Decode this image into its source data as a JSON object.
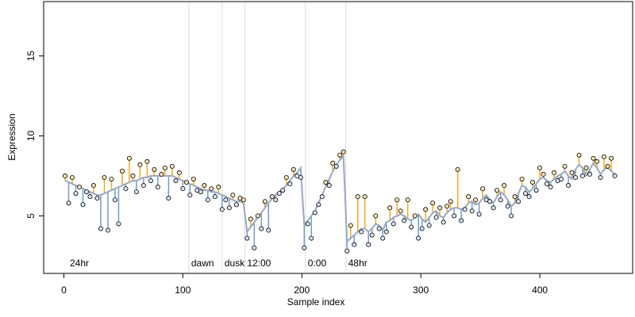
{
  "chart_data": {
    "type": "residual-scatter",
    "x_label": "Sample index",
    "y_label": "Expression",
    "xlim": [
      -17,
      478
    ],
    "ylim": [
      1.4,
      18.4
    ],
    "xticks": [
      0,
      100,
      200,
      300,
      400
    ],
    "yticks": [
      5,
      10,
      15
    ],
    "above_color": "#f5a623",
    "below_color": "#6f9bd8",
    "fit_color": "#9aa8bf",
    "point_color": "#000000",
    "markers": [
      {
        "x": 3,
        "label": "24hr",
        "line": false
      },
      {
        "x": 105,
        "label": "dawn",
        "line": true
      },
      {
        "x": 133,
        "label": "dusk",
        "line": true
      },
      {
        "x": 152,
        "label": "12:00",
        "line": true
      },
      {
        "x": 203,
        "label": "0:00",
        "line": true
      },
      {
        "x": 237,
        "label": "48hr",
        "line": true
      }
    ],
    "x": [
      1,
      4,
      7,
      10,
      13,
      16,
      19,
      22,
      25,
      28,
      31,
      34,
      37,
      40,
      43,
      46,
      49,
      52,
      55,
      58,
      61,
      64,
      67,
      70,
      73,
      76,
      79,
      82,
      85,
      88,
      91,
      94,
      97,
      100,
      103,
      106,
      109,
      112,
      115,
      118,
      121,
      124,
      127,
      130,
      133,
      136,
      139,
      142,
      145,
      148,
      151,
      154,
      157,
      160,
      163,
      166,
      169,
      172,
      175,
      178,
      181,
      184,
      187,
      190,
      193,
      196,
      199,
      202,
      205,
      208,
      211,
      214,
      217,
      220,
      223,
      226,
      229,
      232,
      235,
      238,
      241,
      244,
      247,
      250,
      253,
      256,
      259,
      262,
      265,
      268,
      271,
      274,
      277,
      280,
      283,
      286,
      289,
      292,
      295,
      298,
      301,
      304,
      307,
      310,
      313,
      316,
      319,
      322,
      325,
      328,
      331,
      334,
      337,
      340,
      343,
      346,
      349,
      352,
      355,
      358,
      361,
      364,
      367,
      370,
      373,
      376,
      379,
      382,
      385,
      388,
      391,
      394,
      397,
      400,
      403,
      406,
      409,
      412,
      415,
      418,
      421,
      424,
      427,
      430,
      433,
      436,
      439,
      442,
      445,
      448,
      451,
      454,
      457,
      460,
      463
    ],
    "series": [
      {
        "name": "observed",
        "values": [
          7.5,
          5.8,
          7.4,
          6.4,
          6.8,
          5.7,
          6.5,
          6.2,
          6.9,
          6.1,
          4.2,
          7.4,
          4.1,
          7.3,
          6.0,
          4.5,
          7.8,
          6.7,
          8.6,
          7.5,
          6.5,
          8.2,
          6.9,
          8.4,
          7.2,
          7.9,
          6.8,
          7.6,
          8.0,
          6.1,
          8.1,
          7.2,
          7.7,
          6.7,
          7.1,
          6.3,
          7.3,
          6.6,
          6.5,
          6.9,
          6.0,
          6.7,
          6.2,
          6.8,
          5.4,
          6.0,
          5.5,
          6.3,
          5.7,
          6.1,
          6.0,
          3.6,
          4.8,
          3.0,
          5.0,
          4.2,
          5.9,
          4.1,
          6.2,
          6.0,
          6.4,
          6.6,
          7.4,
          7.0,
          7.9,
          7.5,
          7.4,
          3.0,
          4.5,
          3.6,
          5.2,
          5.7,
          6.2,
          7.1,
          6.9,
          8.3,
          8.1,
          8.8,
          9.0,
          2.8,
          4.4,
          3.2,
          6.2,
          4.0,
          6.2,
          3.2,
          3.8,
          5.0,
          4.2,
          3.6,
          4.0,
          5.5,
          4.5,
          6.0,
          5.3,
          4.7,
          6.0,
          4.3,
          5.0,
          3.6,
          4.2,
          5.4,
          4.4,
          5.8,
          4.9,
          5.5,
          4.6,
          5.6,
          5.9,
          5.0,
          7.9,
          4.7,
          5.4,
          6.2,
          5.3,
          6.0,
          5.1,
          6.7,
          6.0,
          5.9,
          5.5,
          6.6,
          6.0,
          6.9,
          5.6,
          5.0,
          6.2,
          5.9,
          7.3,
          6.4,
          6.2,
          7.1,
          6.6,
          8.0,
          7.6,
          7.0,
          6.8,
          7.7,
          7.2,
          7.3,
          8.1,
          6.9,
          7.7,
          7.4,
          8.8,
          7.5,
          8.0,
          7.6,
          8.6,
          8.4,
          7.4,
          8.7,
          8.1,
          8.6,
          7.5
        ]
      },
      {
        "name": "fit",
        "values": [
          7.2,
          7.1,
          7.0,
          6.9,
          6.8,
          6.7,
          6.6,
          6.5,
          6.4,
          6.3,
          6.3,
          6.4,
          6.5,
          6.6,
          6.7,
          6.8,
          6.9,
          7.0,
          7.1,
          7.2,
          7.2,
          7.3,
          7.4,
          7.4,
          7.5,
          7.5,
          7.5,
          7.5,
          7.5,
          7.5,
          7.5,
          7.4,
          7.3,
          7.2,
          7.1,
          7.0,
          6.9,
          6.8,
          6.7,
          6.6,
          6.6,
          6.5,
          6.5,
          6.4,
          6.3,
          6.2,
          6.1,
          6.0,
          5.9,
          5.9,
          5.8,
          4.0,
          4.3,
          4.6,
          4.9,
          5.2,
          5.5,
          5.8,
          6.1,
          6.3,
          6.5,
          6.7,
          6.9,
          7.2,
          7.5,
          7.7,
          8.0,
          4.4,
          4.7,
          5.0,
          5.3,
          5.8,
          6.3,
          6.8,
          7.3,
          7.8,
          8.2,
          8.5,
          8.7,
          3.4,
          3.6,
          3.8,
          4.0,
          4.2,
          4.2,
          4.0,
          4.2,
          4.5,
          4.4,
          4.1,
          4.6,
          4.7,
          4.9,
          5.0,
          5.1,
          5.0,
          4.8,
          4.7,
          4.9,
          5.1,
          4.8,
          4.6,
          4.9,
          5.2,
          5.3,
          5.0,
          4.9,
          5.2,
          5.4,
          5.5,
          5.5,
          5.4,
          5.5,
          5.8,
          5.9,
          5.7,
          5.8,
          6.1,
          6.3,
          6.0,
          5.8,
          6.2,
          6.5,
          6.3,
          6.0,
          5.6,
          5.8,
          6.4,
          6.9,
          6.8,
          6.5,
          6.7,
          7.0,
          7.3,
          7.4,
          7.2,
          7.1,
          7.3,
          7.5,
          7.6,
          7.8,
          7.5,
          7.3,
          7.9,
          8.2,
          8.0,
          7.5,
          7.9,
          8.3,
          8.0,
          7.6,
          7.9,
          8.0,
          7.8,
          7.6
        ]
      }
    ]
  }
}
